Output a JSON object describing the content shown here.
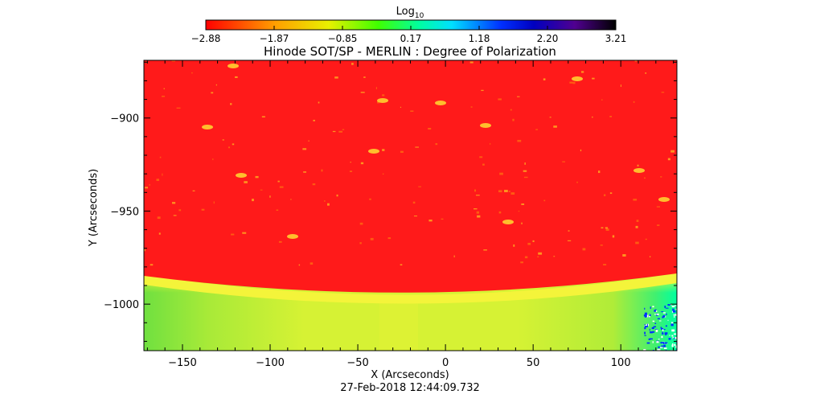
{
  "chart_data": {
    "type": "heatmap",
    "title": "Hinode SOT/SP - MERLIN : Degree of Polarization",
    "xlabel": "X (Arcseconds)",
    "ylabel": "Y (Arcseconds)",
    "xlim": [
      -172,
      132
    ],
    "ylim": [
      -1025,
      -869
    ],
    "xticks": [
      -150,
      -100,
      -50,
      0,
      50,
      100
    ],
    "yticks": [
      -1000,
      -950,
      -900
    ],
    "colorbar": {
      "label": "Log",
      "label_subscript": "10",
      "min": -2.88,
      "max": 3.21,
      "ticks": [
        "-2.88",
        "-1.87",
        "-0.85",
        "0.17",
        "1.18",
        "2.20",
        "3.21"
      ],
      "colormap": "rainbow-reversed"
    },
    "timestamp": "27-Feb-2018 12:44:09.732",
    "colors": {
      "disk": "#ff1a1a",
      "limb": "#ffff30",
      "offlimb": "#c8f030",
      "offlimb_left": "#70e040",
      "offlimb_right_low": "#00ff90",
      "noise": "#0030ff"
    }
  }
}
